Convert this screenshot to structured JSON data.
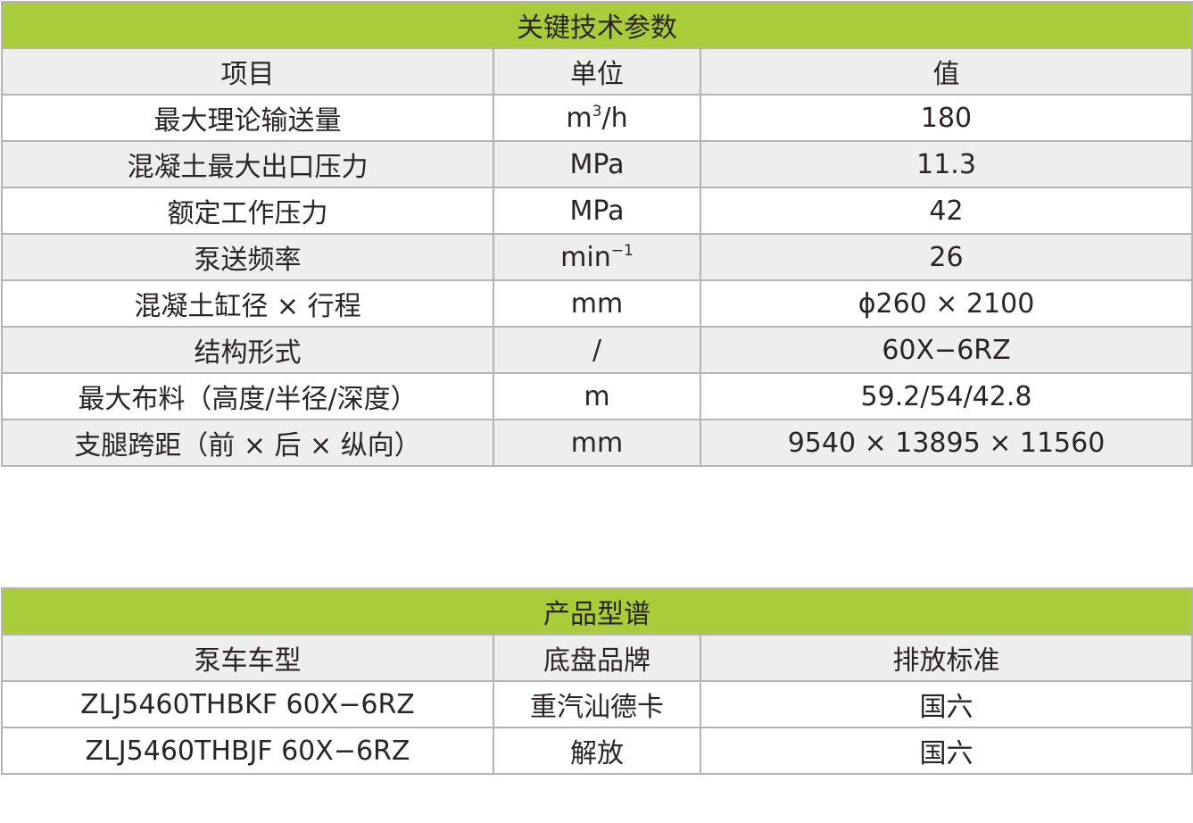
{
  "colors": {
    "header_green": "#a9cc3b",
    "alt_row": "#eeeeee",
    "border": "#b4b4b4"
  },
  "specs": {
    "title": "关键技术参数",
    "headers": [
      "项目",
      "单位",
      "值"
    ],
    "rows": [
      {
        "item": "最大理论输送量",
        "unit_base": "m",
        "unit_sup": "3",
        "unit_tail": "/h",
        "value": "180"
      },
      {
        "item": "混凝土最大出口压力",
        "unit_base": "MPa",
        "unit_sup": "",
        "unit_tail": "",
        "value": "11.3"
      },
      {
        "item": "额定工作压力",
        "unit_base": "MPa",
        "unit_sup": "",
        "unit_tail": "",
        "value": "42"
      },
      {
        "item": "泵送频率",
        "unit_base": "min",
        "unit_sup": "−1",
        "unit_tail": "",
        "value": "26"
      },
      {
        "item": "混凝土缸径 × 行程",
        "unit_base": "mm",
        "unit_sup": "",
        "unit_tail": "",
        "value": "ϕ260 × 2100"
      },
      {
        "item": "结构形式",
        "unit_base": "/",
        "unit_sup": "",
        "unit_tail": "",
        "value": "60X−6RZ"
      },
      {
        "item": "最大布料（高度/半径/深度）",
        "unit_base": "m",
        "unit_sup": "",
        "unit_tail": "",
        "value": "59.2/54/42.8"
      },
      {
        "item": "支腿跨距（前 × 后 × 纵向）",
        "unit_base": "mm",
        "unit_sup": "",
        "unit_tail": "",
        "value": "9540 × 13895 × 11560"
      }
    ]
  },
  "models": {
    "title": "产品型谱",
    "headers": [
      "泵车车型",
      "底盘品牌",
      "排放标准"
    ],
    "rows": [
      {
        "model": "ZLJ5460THBKF 60X−6RZ",
        "chassis": "重汽汕德卡",
        "emission": "国六"
      },
      {
        "model": "ZLJ5460THBJF 60X−6RZ",
        "chassis": "解放",
        "emission": "国六"
      }
    ]
  }
}
